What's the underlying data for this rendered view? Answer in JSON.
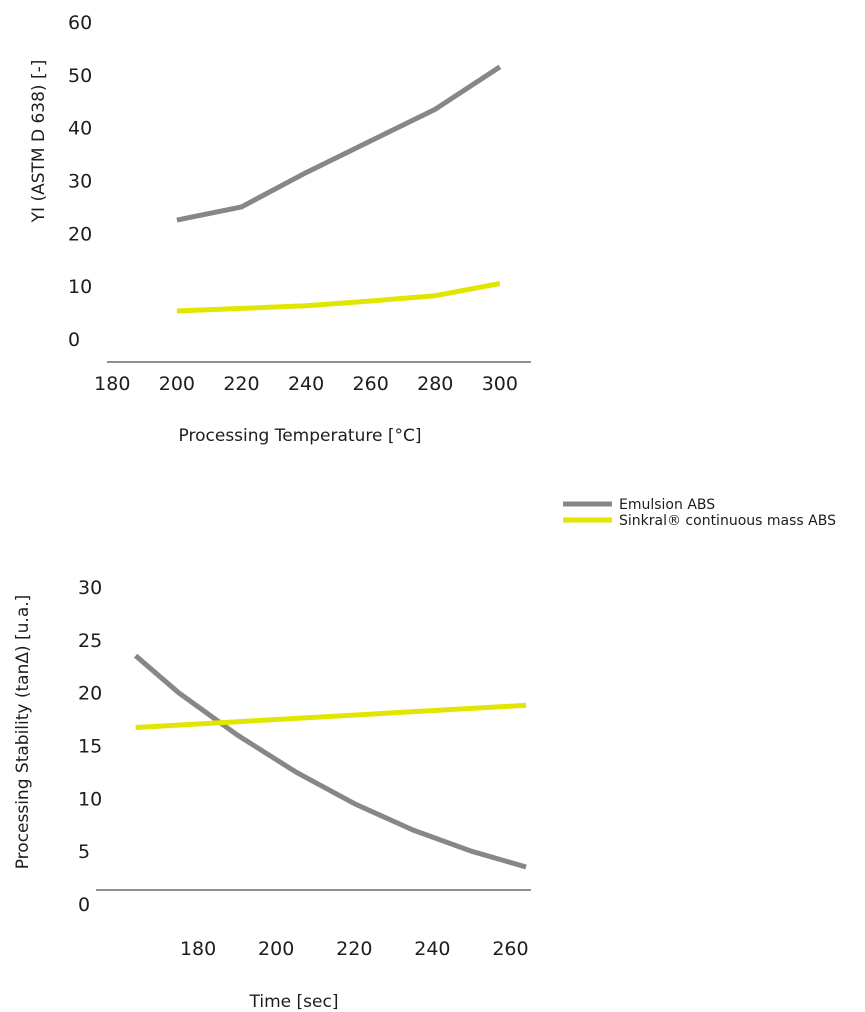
{
  "chart_data": [
    {
      "type": "line",
      "xlabel": "Processing Temperature [°C]",
      "ylabel": "YI (ASTM D 638) [-]",
      "xticks": [
        "180",
        "200",
        "220",
        "240",
        "260",
        "280",
        "300"
      ],
      "yticks": [
        "0",
        "10",
        "20",
        "30",
        "40",
        "50",
        "60"
      ],
      "xlim": [
        170,
        305
      ],
      "ylim": [
        0,
        60
      ],
      "series": [
        {
          "name": "Emulsion ABS",
          "color": "#878787",
          "x": [
            200,
            220,
            240,
            260,
            280,
            300
          ],
          "y": [
            22.5,
            25,
            31.5,
            37.5,
            43.5,
            51.5
          ]
        },
        {
          "name": "Sinkral® continuous mass ABS",
          "color": "#e2e500",
          "x": [
            200,
            220,
            240,
            260,
            280,
            300
          ],
          "y": [
            5.3,
            5.8,
            6.3,
            7.2,
            8.2,
            10.5
          ]
        }
      ]
    },
    {
      "type": "line",
      "xlabel": "Time [sec]",
      "ylabel": "Processing Stability (tanΔ) [u.a.]",
      "xticks": [
        "180",
        "200",
        "220",
        "240",
        "260"
      ],
      "yticks": [
        "0",
        "5",
        "10",
        "15",
        "20",
        "25",
        "30"
      ],
      "xlim": [
        160,
        265
      ],
      "ylim": [
        0,
        30
      ],
      "series": [
        {
          "name": "Emulsion ABS",
          "color": "#878787",
          "x": [
            164,
            175,
            190,
            205,
            220,
            235,
            250,
            264
          ],
          "y": [
            23.5,
            20,
            16,
            12.5,
            9.5,
            7,
            5,
            3.5
          ]
        },
        {
          "name": "Sinkral® continuous mass ABS",
          "color": "#e2e500",
          "x": [
            164,
            264
          ],
          "y": [
            16.7,
            18.8
          ]
        }
      ]
    }
  ],
  "legend": {
    "items": [
      {
        "label": "Emulsion ABS",
        "color": "#878787"
      },
      {
        "label": "Sinkral® continuous mass ABS",
        "color": "#e2e500"
      }
    ]
  }
}
